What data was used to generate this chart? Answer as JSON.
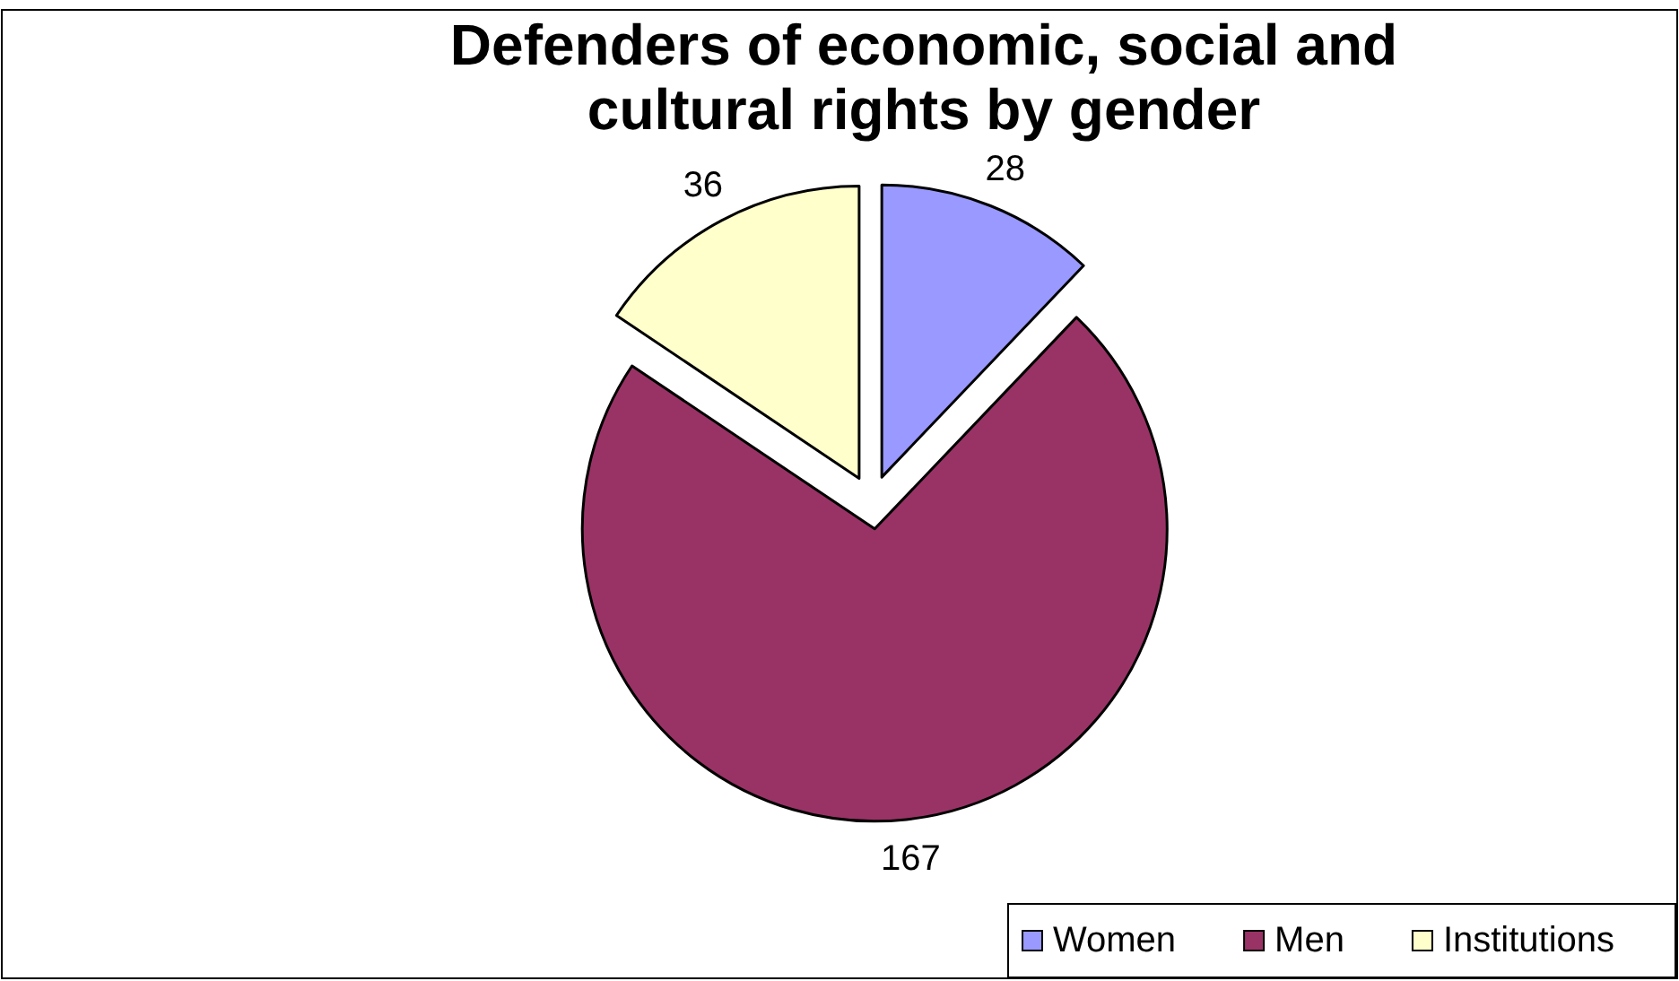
{
  "chart_data": {
    "type": "pie",
    "title": "Defenders of economic, social and cultural rights by gender",
    "categories": [
      "Women",
      "Men",
      "Institutions"
    ],
    "values": [
      28,
      167,
      36
    ],
    "colors": [
      "#9999ff",
      "#993366",
      "#ffffcc"
    ],
    "data_labels": true,
    "legend": "bottom right"
  }
}
